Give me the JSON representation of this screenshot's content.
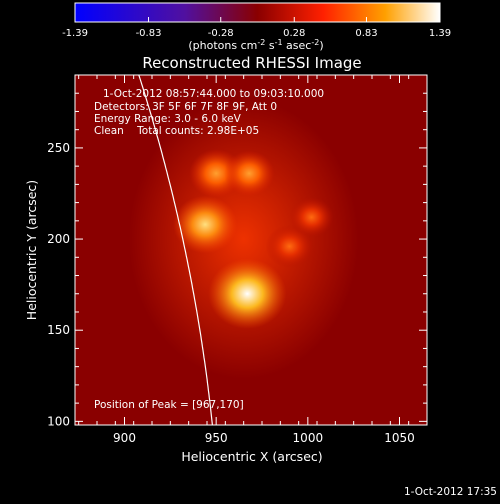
{
  "chart_data": {
    "type": "heatmap",
    "title": "Reconstructed RHESSI Image",
    "xlabel": "Heliocentric X (arcsec)",
    "ylabel": "Heliocentric Y (arcsec)",
    "xlim": [
      873,
      1065
    ],
    "ylim": [
      98,
      290
    ],
    "xticks": [
      900,
      950,
      1000,
      1050
    ],
    "yticks": [
      100,
      150,
      200,
      250
    ],
    "colorbar": {
      "range": [
        -1.39,
        1.39
      ],
      "tick_labels": [
        "-1.39",
        "-0.83",
        "-0.28",
        "0.28",
        "0.83",
        "1.39"
      ],
      "unit_parts": [
        "(photons cm",
        "-2",
        " s",
        "-1",
        " asec",
        "-2",
        ")"
      ],
      "colormap": "hot"
    },
    "info_lines": [
      "1-Oct-2012 08:57:44.000 to 09:03:10.000",
      "Detectors: 3F 5F 6F 7F 8F 9F, Att 0",
      "Energy Range: 3.0 - 6.0 keV",
      "Clean    Total counts: 2.98E+05"
    ],
    "peak_text": "Position of Peak = [967,170]",
    "peak": [
      967,
      170
    ],
    "sources": [
      {
        "x": 967,
        "y": 170,
        "amp": 1.39
      },
      {
        "x": 944,
        "y": 208,
        "amp": 1.0
      },
      {
        "x": 950,
        "y": 236,
        "amp": 0.72
      },
      {
        "x": 968,
        "y": 236,
        "amp": 0.62
      },
      {
        "x": 990,
        "y": 196,
        "amp": 0.55
      },
      {
        "x": 1002,
        "y": 212,
        "amp": 0.45
      }
    ],
    "limb": {
      "center": [
        0,
        0
      ],
      "radius_arcsec": 953
    },
    "footer_date": "1-Oct-2012 17:35"
  }
}
